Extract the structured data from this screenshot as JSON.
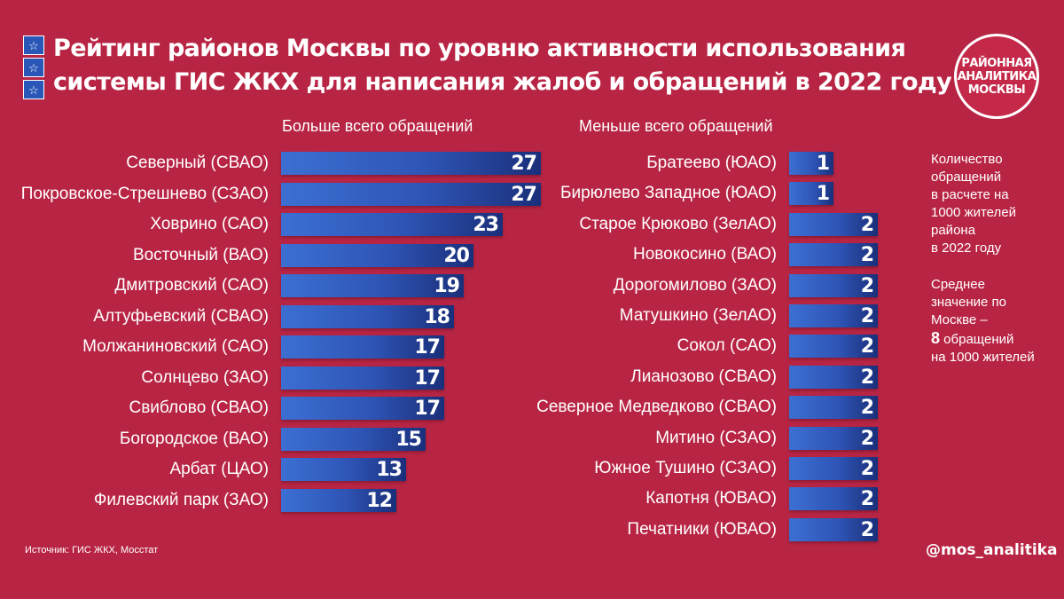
{
  "title": {
    "line1": "Рейтинг районов Москвы по уровню активности использования",
    "line2": "системы ГИС ЖКХ для написания жалоб и обращений в 2022 году"
  },
  "logo": {
    "line1": "РАЙОННАЯ",
    "line2": "АНАЛИТИКА",
    "line3": "МОСКВЫ"
  },
  "decor": {
    "star_icon": "star-icon",
    "star_color": "#2a56b8"
  },
  "colors": {
    "background": "#b82544",
    "bar_start": "#3c6fd3",
    "bar_end": "#1a2f7a"
  },
  "chart_data": [
    {
      "type": "bar",
      "orientation": "horizontal",
      "title": "Больше всего обращений",
      "categories": [
        "Северный (СВАО)",
        "Покровское-Стрешнево (СЗАО)",
        "Ховрино (САО)",
        "Восточный (ВАО)",
        "Дмитровский (САО)",
        "Алтуфьевский (СВАО)",
        "Молжаниновский (САО)",
        "Солнцево (ЗАО)",
        "Свиблово (СВАО)",
        "Богородское (ВАО)",
        "Арбат (ЦАО)",
        "Филевский парк (ЗАО)"
      ],
      "values": [
        27,
        27,
        23,
        20,
        19,
        18,
        17,
        17,
        17,
        15,
        13,
        12
      ],
      "xlim": [
        0,
        27
      ],
      "data_labels": true,
      "grid": false
    },
    {
      "type": "bar",
      "orientation": "horizontal",
      "title": "Меньше всего обращений",
      "categories": [
        "Братеево (ЮАО)",
        "Бирюлево Западное (ЮАО)",
        "Старое Крюково (ЗелАО)",
        "Новокосино (ВАО)",
        "Дорогомилово (ЗАО)",
        "Матушкино (ЗелАО)",
        "Сокол (САО)",
        "Лианозово (СВАО)",
        "Северное Медведково (СВАО)",
        "Митино (СЗАО)",
        "Южное Тушино (СЗАО)",
        "Капотня (ЮВАО)",
        "Печатники (ЮВАО)"
      ],
      "values": [
        1,
        1,
        2,
        2,
        2,
        2,
        2,
        2,
        2,
        2,
        2,
        2,
        2
      ],
      "xlim": [
        0,
        2
      ],
      "data_labels": true,
      "grid": false
    }
  ],
  "notes": {
    "unit_lines": [
      "Количество",
      "обращений",
      "в расчете на",
      "1000 жителей",
      "района",
      "в 2022 году"
    ],
    "avg_lines": [
      "Среднее",
      "значение по",
      "Москве –"
    ],
    "avg_value": "8",
    "avg_suffix": " обращений",
    "avg_tail": "на 1000 жителей"
  },
  "footer": {
    "source": "Источник: ГИС ЖКХ, Мосстат",
    "handle": "@mos_analitika"
  }
}
